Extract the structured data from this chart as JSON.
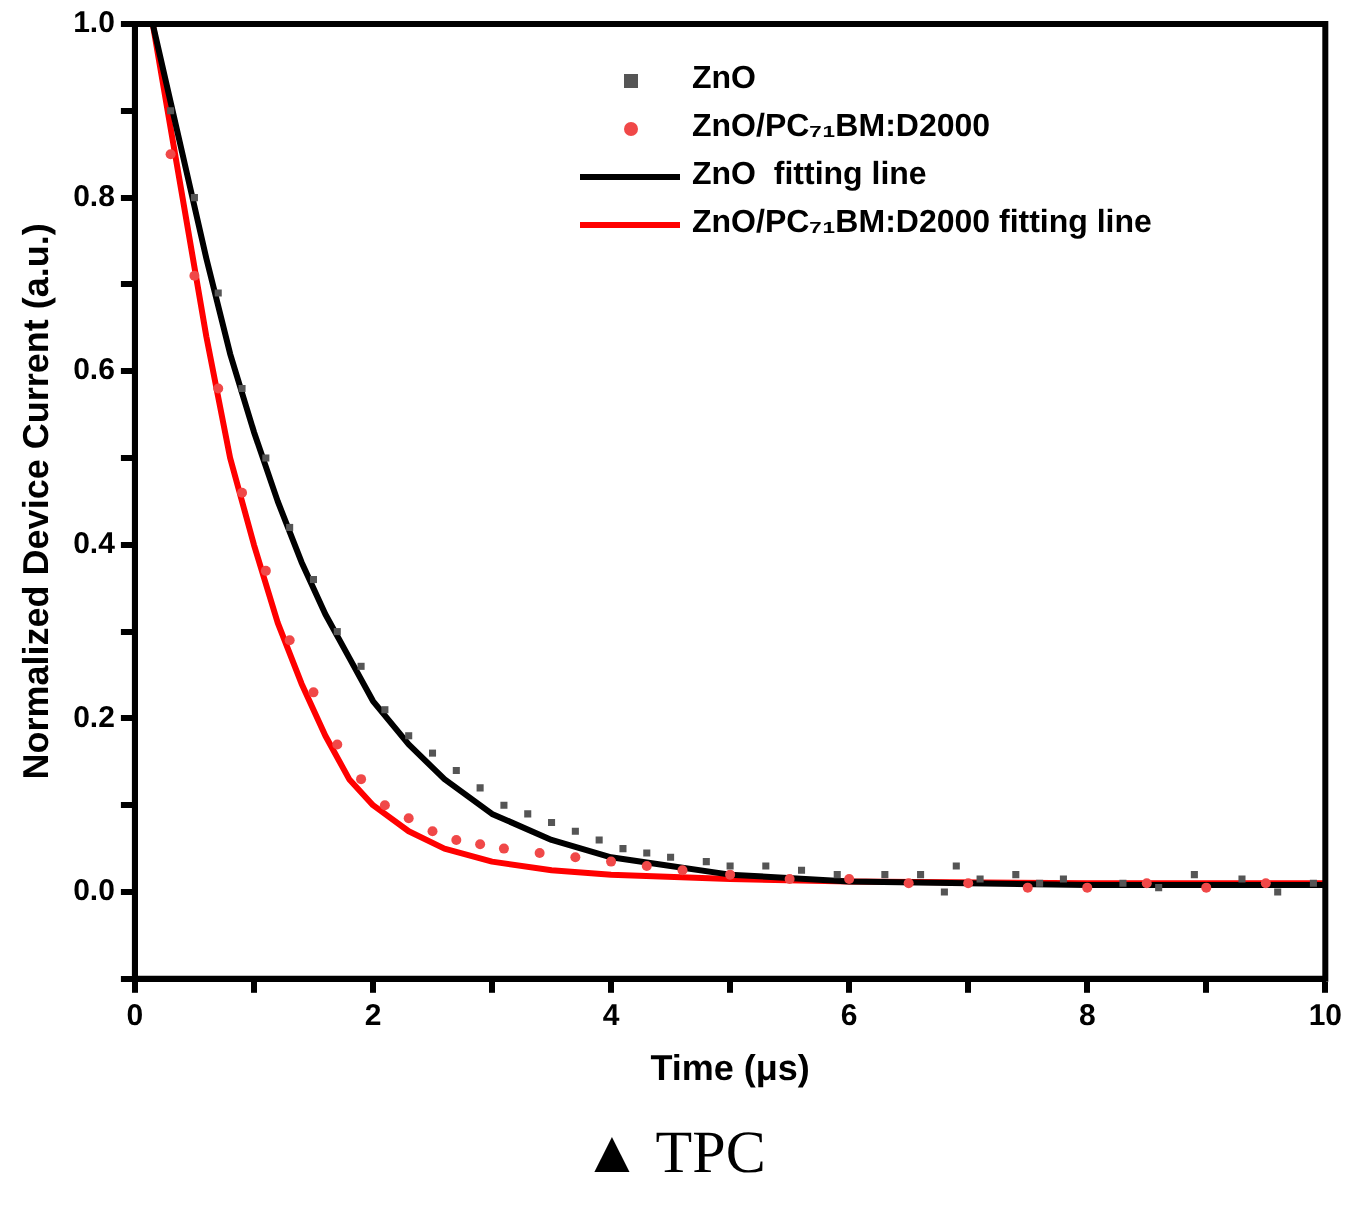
{
  "chart_data": {
    "type": "scatter",
    "xlabel": "Time (μs)",
    "ylabel": "Normalized Device Current (a.u.)",
    "xlim": [
      0,
      10
    ],
    "ylim": [
      -0.1,
      1.0
    ],
    "xticks": [
      0,
      {
        "value": 1,
        "label": null
      },
      2,
      {
        "value": 3,
        "label": null
      },
      4,
      {
        "value": 5,
        "label": null
      },
      6,
      {
        "value": 7,
        "label": null
      },
      8,
      {
        "value": 9,
        "label": null
      },
      10
    ],
    "yticks": [
      {
        "value": -0.1,
        "label": null
      },
      {
        "value": 0,
        "label": "0.0"
      },
      {
        "value": 0.1,
        "label": null
      },
      0.2,
      {
        "value": 0.3,
        "label": null
      },
      0.4,
      {
        "value": 0.5,
        "label": null
      },
      0.6,
      {
        "value": 0.7,
        "label": null
      },
      0.8,
      {
        "value": 0.9,
        "label": null
      },
      {
        "value": 1.0,
        "label": "1.0"
      }
    ],
    "grid": false,
    "legend": "top right",
    "series": [
      {
        "name": "ZnO",
        "type": "scatter",
        "marker": "square",
        "color": "#555555",
        "x": [
          0.3,
          0.5,
          0.7,
          0.9,
          1.1,
          1.3,
          1.5,
          1.7,
          1.9,
          2.1,
          2.3,
          2.5,
          2.7,
          2.9,
          3.1,
          3.3,
          3.5,
          3.7,
          3.9,
          4.1,
          4.3,
          4.5,
          4.8,
          5.0,
          5.3,
          5.6,
          5.9,
          6.3,
          6.6,
          6.8,
          6.9,
          7.1,
          7.4,
          7.6,
          7.8,
          8.3,
          8.6,
          8.9,
          9.3,
          9.6,
          9.9
        ],
        "values": [
          0.9,
          0.8,
          0.69,
          0.58,
          0.5,
          0.42,
          0.36,
          0.3,
          0.26,
          0.21,
          0.18,
          0.16,
          0.14,
          0.12,
          0.1,
          0.09,
          0.08,
          0.07,
          0.06,
          0.05,
          0.045,
          0.04,
          0.035,
          0.03,
          0.03,
          0.025,
          0.02,
          0.02,
          0.02,
          0.0,
          0.03,
          0.015,
          0.02,
          0.01,
          0.015,
          0.01,
          0.005,
          0.02,
          0.015,
          0.0,
          0.01
        ]
      },
      {
        "name": "ZnO/PC₇₁BM:D2000",
        "type": "scatter",
        "marker": "circle",
        "color": "#f04848",
        "x": [
          0.3,
          0.5,
          0.7,
          0.9,
          1.1,
          1.3,
          1.5,
          1.7,
          1.9,
          2.1,
          2.3,
          2.5,
          2.7,
          2.9,
          3.1,
          3.4,
          3.7,
          4.0,
          4.3,
          4.6,
          5.0,
          5.5,
          6.0,
          6.5,
          7.0,
          7.5,
          8.0,
          8.5,
          9.0,
          9.5
        ],
        "values": [
          0.85,
          0.71,
          0.58,
          0.46,
          0.37,
          0.29,
          0.23,
          0.17,
          0.13,
          0.1,
          0.085,
          0.07,
          0.06,
          0.055,
          0.05,
          0.045,
          0.04,
          0.035,
          0.03,
          0.025,
          0.02,
          0.015,
          0.015,
          0.01,
          0.01,
          0.005,
          0.005,
          0.01,
          0.005,
          0.01
        ]
      },
      {
        "name": "ZnO  fitting line",
        "type": "line",
        "marker": "none",
        "color": "#000000",
        "x": [
          0.15,
          0.4,
          0.6,
          0.8,
          1.0,
          1.2,
          1.4,
          1.6,
          1.8,
          2.0,
          2.3,
          2.6,
          3.0,
          3.5,
          4.0,
          4.5,
          5.0,
          6.0,
          8.0,
          10
        ],
        "values": [
          1.0,
          0.85,
          0.73,
          0.62,
          0.53,
          0.45,
          0.38,
          0.32,
          0.27,
          0.22,
          0.17,
          0.13,
          0.09,
          0.06,
          0.04,
          0.03,
          0.02,
          0.012,
          0.008,
          0.008
        ]
      },
      {
        "name": "ZnO/PC₇₁BM:D2000 fitting line",
        "type": "line",
        "marker": "none",
        "color": "#ff0000",
        "x": [
          0.15,
          0.4,
          0.6,
          0.8,
          1.0,
          1.2,
          1.4,
          1.6,
          1.8,
          2.0,
          2.3,
          2.6,
          3.0,
          3.5,
          4.0,
          5.0,
          6.0,
          8.0,
          10
        ],
        "values": [
          1.0,
          0.8,
          0.64,
          0.5,
          0.4,
          0.31,
          0.24,
          0.18,
          0.13,
          0.1,
          0.07,
          0.05,
          0.035,
          0.025,
          0.02,
          0.015,
          0.012,
          0.01,
          0.01
        ]
      }
    ],
    "annotations": [
      "▲ TPC"
    ]
  }
}
